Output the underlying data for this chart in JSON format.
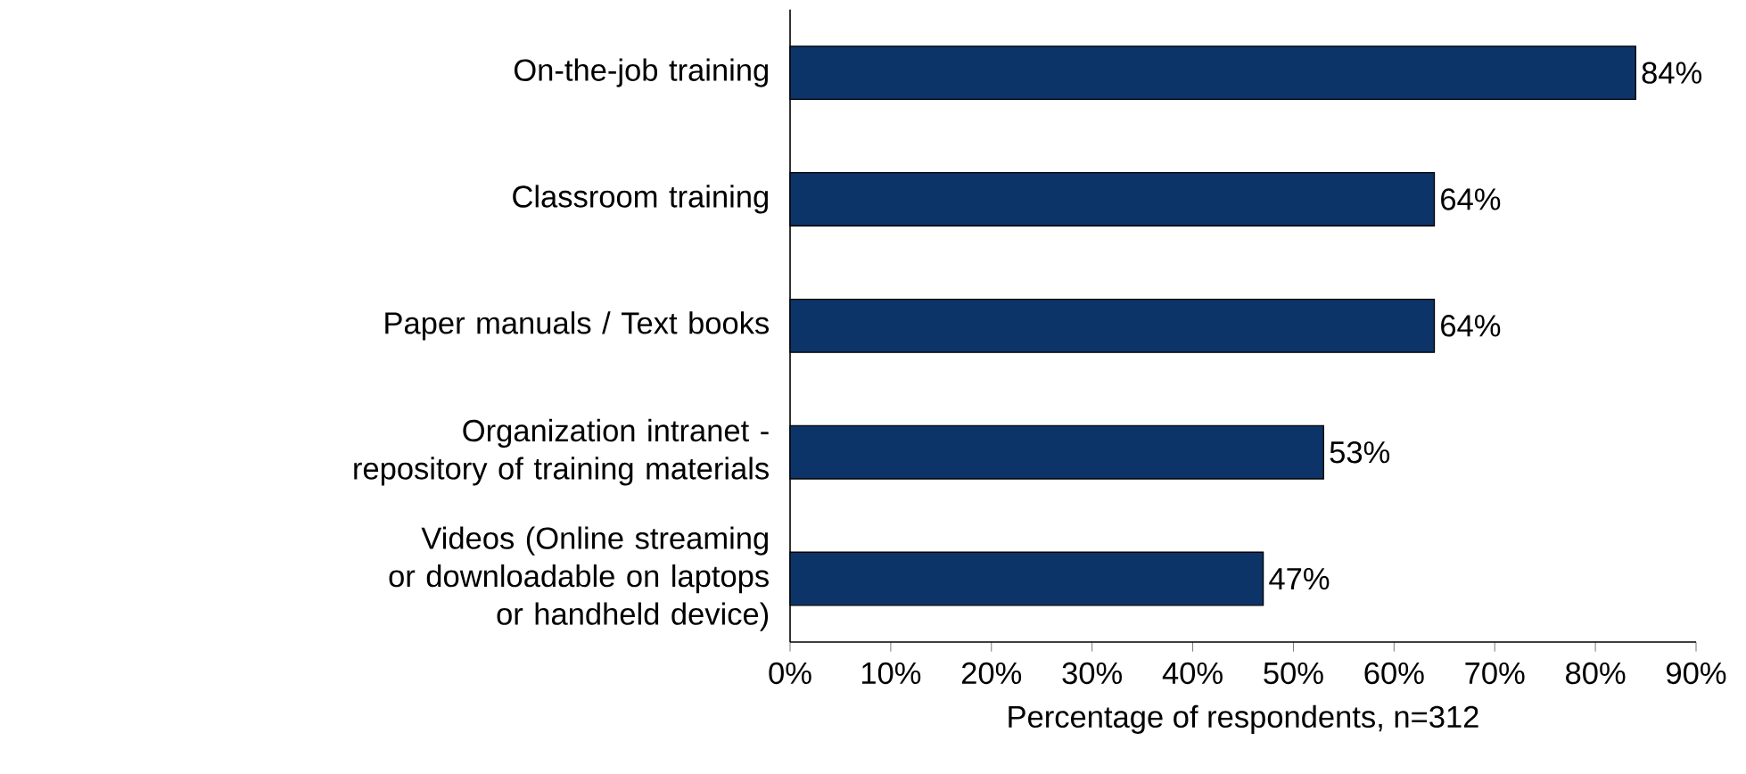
{
  "chart_data": {
    "type": "bar",
    "orientation": "horizontal",
    "categories": [
      "On-the-job training",
      "Classroom training",
      "Paper manuals / Text books",
      "Organization intranet - repository of training materials",
      "Videos (Online streaming or downloadable on laptops or handheld device)"
    ],
    "values": [
      84,
      64,
      64,
      53,
      47
    ],
    "value_labels": [
      "84%",
      "64%",
      "64%",
      "53%",
      "47%"
    ],
    "color": "#0d3468",
    "xlim": [
      0,
      90
    ],
    "xticks": [
      {
        "value": 0,
        "label": "0%"
      },
      {
        "value": 10,
        "label": "10%"
      },
      {
        "value": 20,
        "label": "20%"
      },
      {
        "value": 30,
        "label": "30%"
      },
      {
        "value": 40,
        "label": "40%"
      },
      {
        "value": 50,
        "label": "50%"
      },
      {
        "value": 60,
        "label": "60%"
      },
      {
        "value": 70,
        "label": "70%"
      },
      {
        "value": 80,
        "label": "80%"
      },
      {
        "value": 90,
        "label": "90%"
      }
    ],
    "xlabel": "Percentage of respondents, n=312"
  }
}
